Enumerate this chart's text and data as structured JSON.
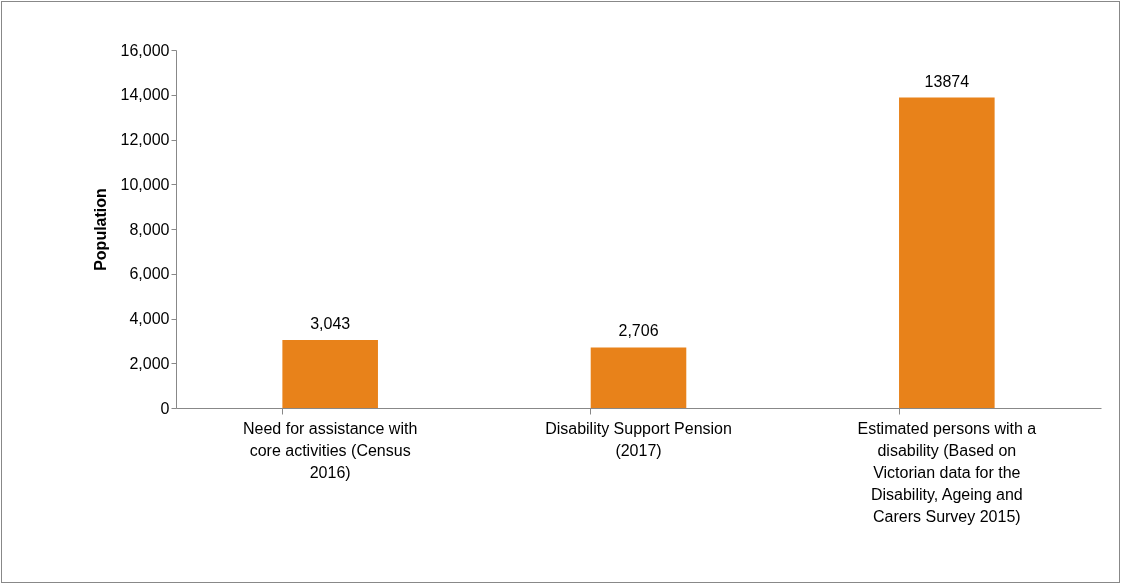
{
  "chart_data": {
    "type": "bar",
    "ylabel": "Population",
    "categories": [
      "Need for assistance with core activities (Census 2016)",
      "Disability Support Pension (2017)",
      "Estimated persons with a disability (Based on Victorian data for the Disability, Ageing and Carers Survey 2015)"
    ],
    "values": [
      3043,
      2706,
      13874
    ],
    "value_labels": [
      "3,043",
      "2,706",
      "13874"
    ],
    "color": "#e8821a",
    "ylim": [
      0,
      16000
    ],
    "yticks": [
      0,
      {
        "value": 2000,
        "label": "2,000"
      },
      {
        "value": 4000,
        "label": "4,000"
      },
      {
        "value": 6000,
        "label": "6,000"
      },
      {
        "value": 8000,
        "label": "8,000"
      },
      {
        "value": 10000,
        "label": "10,000"
      },
      {
        "value": 12000,
        "label": "12,000"
      },
      {
        "value": 14000,
        "label": "14,000"
      },
      {
        "value": 16000,
        "label": "16,000"
      }
    ],
    "grid": false
  }
}
